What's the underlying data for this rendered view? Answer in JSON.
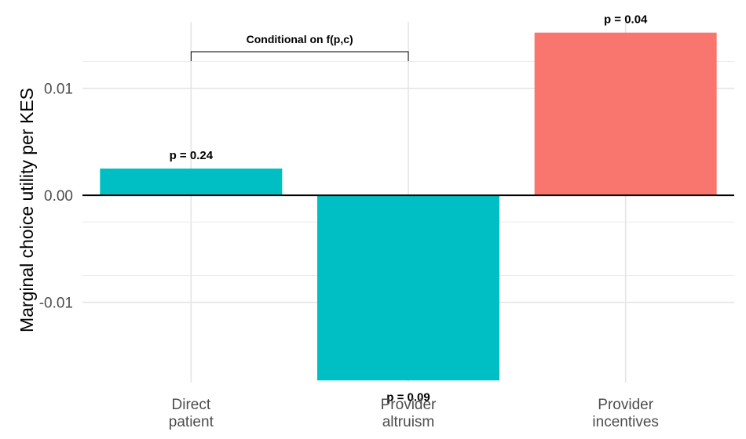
{
  "chart_data": {
    "type": "bar",
    "title": "",
    "xlabel": "",
    "ylabel": "Marginal choice utility per KES",
    "categories": [
      [
        "Direct",
        "patient"
      ],
      [
        "Provider",
        "altruism"
      ],
      [
        "Provider",
        "incentives"
      ]
    ],
    "values": [
      0.0025,
      -0.0173,
      0.0152
    ],
    "bar_colors": [
      "#00BFC4",
      "#00BFC4",
      "#F8766D"
    ],
    "annotations": [
      "p = 0.24",
      "p = 0.09",
      "p = 0.04"
    ],
    "bracket": {
      "label": "Conditional on f(p,c)",
      "from_category": 0,
      "to_category": 1
    },
    "yticks": [
      0.01,
      0.0,
      -0.01
    ],
    "ytick_labels": [
      "0.01",
      "0.00",
      "-0.01"
    ],
    "ylim": [
      -0.0175,
      0.0162
    ],
    "grid": true,
    "zero_line": true
  }
}
